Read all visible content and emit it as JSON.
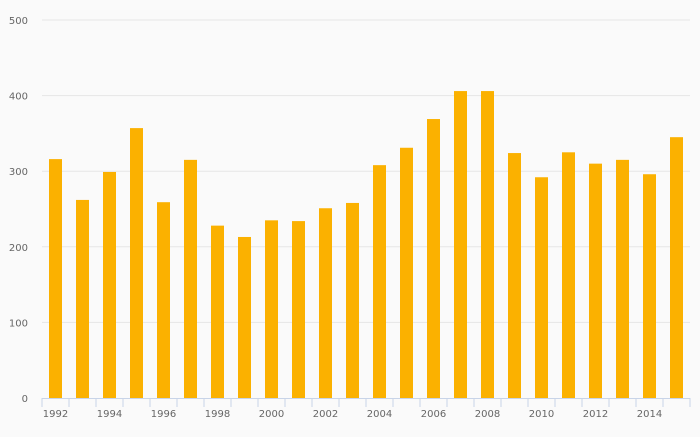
{
  "chart_data": {
    "type": "bar",
    "title": "",
    "xlabel": "",
    "ylabel": "",
    "ylim": [
      0,
      500
    ],
    "yticks": [
      0,
      100,
      200,
      300,
      400,
      500
    ],
    "grid": true,
    "categories": [
      "1992",
      "1993",
      "1994",
      "1995",
      "1996",
      "1997",
      "1998",
      "1999",
      "2000",
      "2001",
      "2002",
      "2003",
      "2004",
      "2005",
      "2006",
      "2007",
      "2008",
      "2009",
      "2010",
      "2011",
      "2012",
      "2013",
      "2014",
      "2015"
    ],
    "xtick_labels": [
      "1992",
      "1994",
      "1996",
      "1998",
      "2000",
      "2002",
      "2004",
      "2006",
      "2008",
      "2010",
      "2012",
      "2014"
    ],
    "values": [
      316,
      262,
      299,
      357,
      259,
      315,
      228,
      213,
      235,
      234,
      251,
      258,
      308,
      331,
      369,
      406,
      406,
      324,
      292,
      325,
      310,
      315,
      296,
      345
    ],
    "colors": {
      "bar": "#fbb100",
      "grid": "#e6e6e6",
      "axis": "#c8d4e8"
    }
  }
}
